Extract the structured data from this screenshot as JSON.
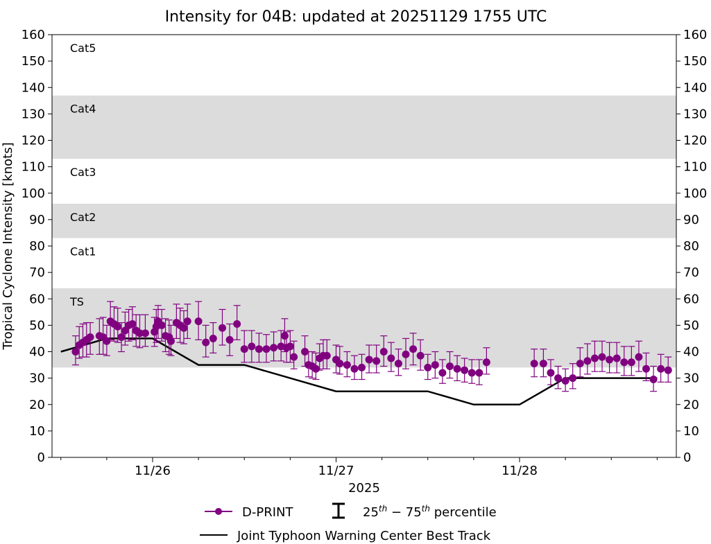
{
  "chart_data": {
    "type": "scatter",
    "title": "Intensity for 04B: updated at 20251129 1755 UTC",
    "ylabel": "Tropical Cyclone Intensity [knots]",
    "xlabel": "2025",
    "ylim": [
      0,
      160
    ],
    "yticks": [
      0,
      10,
      20,
      30,
      40,
      50,
      60,
      70,
      80,
      90,
      100,
      110,
      120,
      130,
      140,
      150,
      160
    ],
    "xlim": [
      -0.5,
      2.9
    ],
    "xticks": [
      {
        "x": 0,
        "label": "11/26"
      },
      {
        "x": 1,
        "label": "11/27"
      },
      {
        "x": 2,
        "label": "11/28"
      }
    ],
    "minor_xticks": [
      -0.5,
      -0.25,
      0.25,
      0.5,
      0.75,
      1.25,
      1.5,
      1.75,
      2.25,
      2.5,
      2.75
    ],
    "bands": [
      {
        "label": "TS",
        "ymin": 34,
        "ymax": 64,
        "color": "#dcdcdc"
      },
      {
        "label": "Cat1",
        "ymin": 64,
        "ymax": 83,
        "color": "#ffffff"
      },
      {
        "label": "Cat2",
        "ymin": 83,
        "ymax": 96,
        "color": "#dcdcdc"
      },
      {
        "label": "Cat3",
        "ymin": 96,
        "ymax": 113,
        "color": "#ffffff"
      },
      {
        "label": "Cat4",
        "ymin": 113,
        "ymax": 137,
        "color": "#dcdcdc"
      },
      {
        "label": "Cat5",
        "ymin": 137,
        "ymax": 160,
        "color": "#ffffff"
      }
    ],
    "series": [
      {
        "name": "D-PRINT",
        "color": "#800080",
        "points": [
          {
            "x": -0.42,
            "y": 40,
            "lo": 35,
            "hi": 46
          },
          {
            "x": -0.4,
            "y": 42.5,
            "lo": 37.5,
            "hi": 49.5
          },
          {
            "x": -0.38,
            "y": 43.5,
            "lo": 38,
            "hi": 50.5
          },
          {
            "x": -0.36,
            "y": 44.5,
            "lo": 38,
            "hi": 51
          },
          {
            "x": -0.34,
            "y": 45.5,
            "lo": 39,
            "hi": 51
          },
          {
            "x": -0.29,
            "y": 46,
            "lo": 39,
            "hi": 52.5
          },
          {
            "x": -0.27,
            "y": 45.5,
            "lo": 39,
            "hi": 53
          },
          {
            "x": -0.25,
            "y": 44,
            "lo": 38.5,
            "hi": 50
          },
          {
            "x": -0.23,
            "y": 51.5,
            "lo": 44.5,
            "hi": 59
          },
          {
            "x": -0.21,
            "y": 50.5,
            "lo": 44,
            "hi": 57
          },
          {
            "x": -0.19,
            "y": 49.5,
            "lo": 43.5,
            "hi": 56.5
          },
          {
            "x": -0.17,
            "y": 45.5,
            "lo": 40,
            "hi": 51
          },
          {
            "x": -0.15,
            "y": 48,
            "lo": 42.5,
            "hi": 55
          },
          {
            "x": -0.13,
            "y": 50,
            "lo": 44,
            "hi": 56
          },
          {
            "x": -0.11,
            "y": 50.5,
            "lo": 44.5,
            "hi": 57
          },
          {
            "x": -0.09,
            "y": 48,
            "lo": 42,
            "hi": 54
          },
          {
            "x": -0.07,
            "y": 47,
            "lo": 41.5,
            "hi": 54
          },
          {
            "x": -0.04,
            "y": 47,
            "lo": 42,
            "hi": 54
          },
          {
            "x": 0.01,
            "y": 47.5,
            "lo": 42,
            "hi": 53
          },
          {
            "x": 0.02,
            "y": 49.5,
            "lo": 43.5,
            "hi": 56
          },
          {
            "x": 0.03,
            "y": 51.5,
            "lo": 45,
            "hi": 57.5
          },
          {
            "x": 0.05,
            "y": 50,
            "lo": 44,
            "hi": 56
          },
          {
            "x": 0.07,
            "y": 46,
            "lo": 40,
            "hi": 52.5
          },
          {
            "x": 0.09,
            "y": 45.5,
            "lo": 39,
            "hi": 52
          },
          {
            "x": 0.1,
            "y": 44,
            "lo": 38.5,
            "hi": 50
          },
          {
            "x": 0.13,
            "y": 51,
            "lo": 45,
            "hi": 58
          },
          {
            "x": 0.15,
            "y": 50,
            "lo": 43.5,
            "hi": 56.5
          },
          {
            "x": 0.17,
            "y": 49,
            "lo": 43,
            "hi": 55.5
          },
          {
            "x": 0.19,
            "y": 51.5,
            "lo": 45,
            "hi": 58
          },
          {
            "x": 0.25,
            "y": 51.5,
            "lo": 44.5,
            "hi": 59
          },
          {
            "x": 0.29,
            "y": 43.5,
            "lo": 38,
            "hi": 50
          },
          {
            "x": 0.33,
            "y": 45,
            "lo": 39.5,
            "hi": 51
          },
          {
            "x": 0.38,
            "y": 49,
            "lo": 42.5,
            "hi": 56
          },
          {
            "x": 0.42,
            "y": 44.5,
            "lo": 38.5,
            "hi": 50.5
          },
          {
            "x": 0.46,
            "y": 50.5,
            "lo": 44.5,
            "hi": 57.5
          },
          {
            "x": 0.5,
            "y": 41,
            "lo": 36,
            "hi": 48
          },
          {
            "x": 0.54,
            "y": 42,
            "lo": 36,
            "hi": 48
          },
          {
            "x": 0.58,
            "y": 41,
            "lo": 36,
            "hi": 47
          },
          {
            "x": 0.62,
            "y": 41,
            "lo": 36,
            "hi": 46.5
          },
          {
            "x": 0.66,
            "y": 41.5,
            "lo": 36.5,
            "hi": 47.5
          },
          {
            "x": 0.7,
            "y": 42,
            "lo": 36.5,
            "hi": 48
          },
          {
            "x": 0.72,
            "y": 46,
            "lo": 40,
            "hi": 52.5
          },
          {
            "x": 0.73,
            "y": 41.5,
            "lo": 36,
            "hi": 47.5
          },
          {
            "x": 0.75,
            "y": 42,
            "lo": 36,
            "hi": 48
          },
          {
            "x": 0.77,
            "y": 38,
            "lo": 33.5,
            "hi": 44
          },
          {
            "x": 0.83,
            "y": 40,
            "lo": 34.5,
            "hi": 46
          },
          {
            "x": 0.85,
            "y": 35,
            "lo": 30.5,
            "hi": 40
          },
          {
            "x": 0.87,
            "y": 34.5,
            "lo": 30,
            "hi": 40
          },
          {
            "x": 0.89,
            "y": 33.5,
            "lo": 29.5,
            "hi": 39.5
          },
          {
            "x": 0.91,
            "y": 37.5,
            "lo": 33,
            "hi": 43
          },
          {
            "x": 0.93,
            "y": 38.5,
            "lo": 33.5,
            "hi": 44.5
          },
          {
            "x": 0.95,
            "y": 38.5,
            "lo": 33.5,
            "hi": 44.5
          },
          {
            "x": 1.0,
            "y": 37,
            "lo": 32,
            "hi": 42.5
          },
          {
            "x": 1.02,
            "y": 35.5,
            "lo": 31.5,
            "hi": 42
          },
          {
            "x": 1.06,
            "y": 35,
            "lo": 30.5,
            "hi": 40
          },
          {
            "x": 1.1,
            "y": 33.5,
            "lo": 29.5,
            "hi": 38.5
          },
          {
            "x": 1.14,
            "y": 34,
            "lo": 29.5,
            "hi": 39
          },
          {
            "x": 1.18,
            "y": 37,
            "lo": 32,
            "hi": 42.5
          },
          {
            "x": 1.22,
            "y": 36.5,
            "lo": 32,
            "hi": 42.5
          },
          {
            "x": 1.26,
            "y": 40,
            "lo": 34.5,
            "hi": 46
          },
          {
            "x": 1.3,
            "y": 37.5,
            "lo": 32.5,
            "hi": 43.5
          },
          {
            "x": 1.34,
            "y": 35.5,
            "lo": 31,
            "hi": 41
          },
          {
            "x": 1.38,
            "y": 39,
            "lo": 33.5,
            "hi": 45
          },
          {
            "x": 1.42,
            "y": 41,
            "lo": 35,
            "hi": 47
          },
          {
            "x": 1.46,
            "y": 38.5,
            "lo": 33,
            "hi": 44.5
          },
          {
            "x": 1.5,
            "y": 34,
            "lo": 29.5,
            "hi": 39
          },
          {
            "x": 1.54,
            "y": 35,
            "lo": 30,
            "hi": 40
          },
          {
            "x": 1.58,
            "y": 32,
            "lo": 28,
            "hi": 37
          },
          {
            "x": 1.62,
            "y": 34.5,
            "lo": 30,
            "hi": 40
          },
          {
            "x": 1.66,
            "y": 33.5,
            "lo": 29,
            "hi": 38.5
          },
          {
            "x": 1.7,
            "y": 33,
            "lo": 28.5,
            "hi": 37.5
          },
          {
            "x": 1.74,
            "y": 32,
            "lo": 28,
            "hi": 37
          },
          {
            "x": 1.78,
            "y": 32,
            "lo": 27.5,
            "hi": 37
          },
          {
            "x": 1.82,
            "y": 36,
            "lo": 31.5,
            "hi": 41.5
          },
          {
            "x": 2.08,
            "y": 35.5,
            "lo": 30.5,
            "hi": 41
          },
          {
            "x": 2.13,
            "y": 35.5,
            "lo": 30.5,
            "hi": 41
          },
          {
            "x": 2.17,
            "y": 32,
            "lo": 27.5,
            "hi": 37
          },
          {
            "x": 2.21,
            "y": 30,
            "lo": 26,
            "hi": 34.5
          },
          {
            "x": 2.25,
            "y": 29,
            "lo": 25,
            "hi": 33.5
          },
          {
            "x": 2.29,
            "y": 30,
            "lo": 26,
            "hi": 35.5
          },
          {
            "x": 2.33,
            "y": 35.5,
            "lo": 30.5,
            "hi": 41.5
          },
          {
            "x": 2.37,
            "y": 36.5,
            "lo": 31.5,
            "hi": 43
          },
          {
            "x": 2.41,
            "y": 37.5,
            "lo": 32.5,
            "hi": 44
          },
          {
            "x": 2.45,
            "y": 38,
            "lo": 32.5,
            "hi": 44
          },
          {
            "x": 2.49,
            "y": 37,
            "lo": 32,
            "hi": 43.5
          },
          {
            "x": 2.53,
            "y": 37.5,
            "lo": 32,
            "hi": 43.5
          },
          {
            "x": 2.57,
            "y": 36,
            "lo": 31,
            "hi": 42
          },
          {
            "x": 2.61,
            "y": 36,
            "lo": 31,
            "hi": 42
          },
          {
            "x": 2.65,
            "y": 38,
            "lo": 32.5,
            "hi": 44
          },
          {
            "x": 2.69,
            "y": 33.5,
            "lo": 29,
            "hi": 39.5
          },
          {
            "x": 2.73,
            "y": 29.5,
            "lo": 25,
            "hi": 34.5
          },
          {
            "x": 2.77,
            "y": 33.5,
            "lo": 28.5,
            "hi": 39
          },
          {
            "x": 2.81,
            "y": 33,
            "lo": 28.5,
            "hi": 38
          }
        ]
      },
      {
        "name": "Joint Typhoon Warning Center Best Track",
        "color": "#000000",
        "points": [
          {
            "x": -0.5,
            "y": 40
          },
          {
            "x": -0.25,
            "y": 45
          },
          {
            "x": 0.0,
            "y": 45
          },
          {
            "x": 0.25,
            "y": 35
          },
          {
            "x": 0.5,
            "y": 35
          },
          {
            "x": 1.0,
            "y": 25
          },
          {
            "x": 1.5,
            "y": 25
          },
          {
            "x": 1.75,
            "y": 20
          },
          {
            "x": 2.0,
            "y": 20
          },
          {
            "x": 2.25,
            "y": 30
          },
          {
            "x": 2.75,
            "y": 30
          }
        ]
      }
    ],
    "legend": {
      "placement": "bottom-center",
      "dprint_label": "D-PRINT",
      "percentile_label": "25th – 75th percentile",
      "percentile_sup": "th",
      "percentile_base_lo": "25",
      "percentile_base_hi": "75",
      "percentile_dash": " − ",
      "percentile_word": " percentile",
      "jtwc_label": "Joint Typhoon Warning Center Best Track"
    }
  }
}
